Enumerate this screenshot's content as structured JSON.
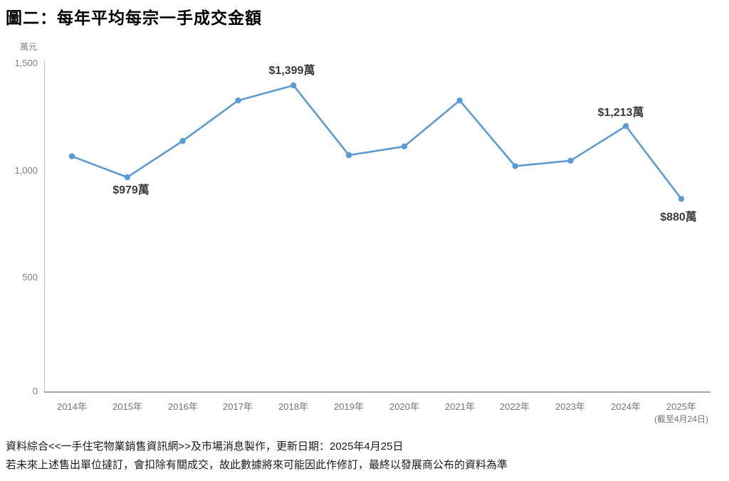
{
  "page": {
    "title": "圖二：每年平均每宗一手成交金額",
    "footnotes": [
      "資料綜合<<一手住宅物業銷售資訊網>>及市場消息製作，更新日期：2025年4月25日",
      "若未來上述售出單位撻訂，會扣除有關成交，故此數據將來可能因此作修訂，最終以發展商公布的資料為準"
    ]
  },
  "chart_data": {
    "type": "line",
    "title": "圖二：每年平均每宗一手成交金額",
    "ylabel": "萬元",
    "ylim": [
      0,
      1500
    ],
    "ytick_labels": [
      "1,500",
      "1,000",
      "500",
      "0"
    ],
    "categories": [
      "2014年",
      "2015年",
      "2016年",
      "2017年",
      "2018年",
      "2019年",
      "2020年",
      "2021年",
      "2022年",
      "2023年",
      "2024年",
      "2025年"
    ],
    "x_note": "(截至4月24日)",
    "values": [
      1075,
      979,
      1145,
      1330,
      1399,
      1080,
      1120,
      1330,
      1030,
      1055,
      1213,
      880
    ],
    "point_labels": [
      {
        "index": 1,
        "text": "$979萬",
        "position": "below"
      },
      {
        "index": 4,
        "text": "$1,399萬",
        "position": "above"
      },
      {
        "index": 10,
        "text": "$1,213萬",
        "position": "above"
      },
      {
        "index": 11,
        "text": "$880萬",
        "position": "below"
      }
    ],
    "line_color": "#5B9BD5",
    "marker": "circle",
    "grid": false,
    "legend": "none"
  }
}
